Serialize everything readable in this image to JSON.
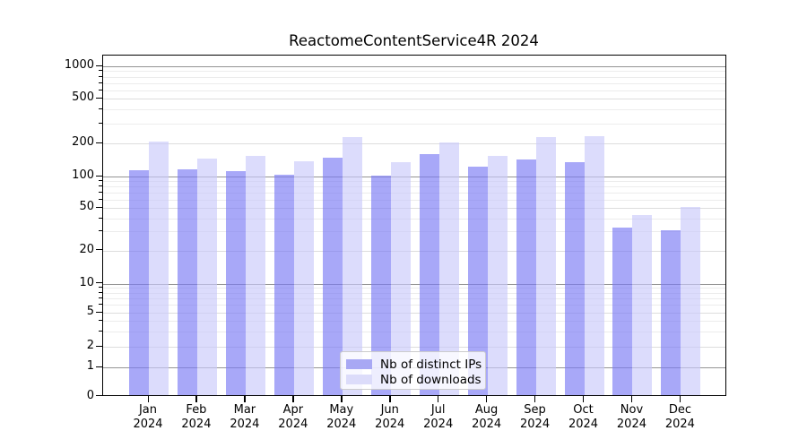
{
  "title": "ReactomeContentService4R 2024",
  "colors": {
    "bar_ips": "rgba(121,121,244,0.65)",
    "bar_downloads": "rgba(201,201,250,0.65)",
    "legend_ips": "#a8a8f4",
    "legend_downloads": "#dcdcfa",
    "grid_power10": "#949494",
    "grid_labeled": "#dddddd",
    "grid_minor": "#ececec",
    "axis": "#000000",
    "background": "#ffffff"
  },
  "legend": {
    "items": [
      {
        "label": "Nb of distinct IPs",
        "color_key": "legend_ips"
      },
      {
        "label": "Nb of downloads",
        "color_key": "legend_downloads"
      }
    ]
  },
  "chart_data": {
    "type": "bar",
    "title": "ReactomeContentService4R 2024",
    "categories": [
      "Jan",
      "Feb",
      "Mar",
      "Apr",
      "May",
      "Jun",
      "Jul",
      "Aug",
      "Sep",
      "Oct",
      "Nov",
      "Dec"
    ],
    "year": "2024",
    "series": [
      {
        "name": "Nb of distinct IPs",
        "values": [
          113,
          117,
          112,
          103,
          148,
          101,
          160,
          124,
          143,
          135,
          33,
          31
        ]
      },
      {
        "name": "Nb of downloads",
        "values": [
          207,
          145,
          155,
          137,
          228,
          135,
          203,
          155,
          227,
          232,
          43,
          51
        ]
      }
    ],
    "yscale": "symlog",
    "yticks": [
      0,
      1,
      2,
      5,
      10,
      20,
      50,
      100,
      200,
      500,
      1000
    ],
    "ylim": [
      0,
      1400
    ],
    "xlabel": "",
    "ylabel": "",
    "grid": true,
    "legend_position": "bottom-center"
  }
}
